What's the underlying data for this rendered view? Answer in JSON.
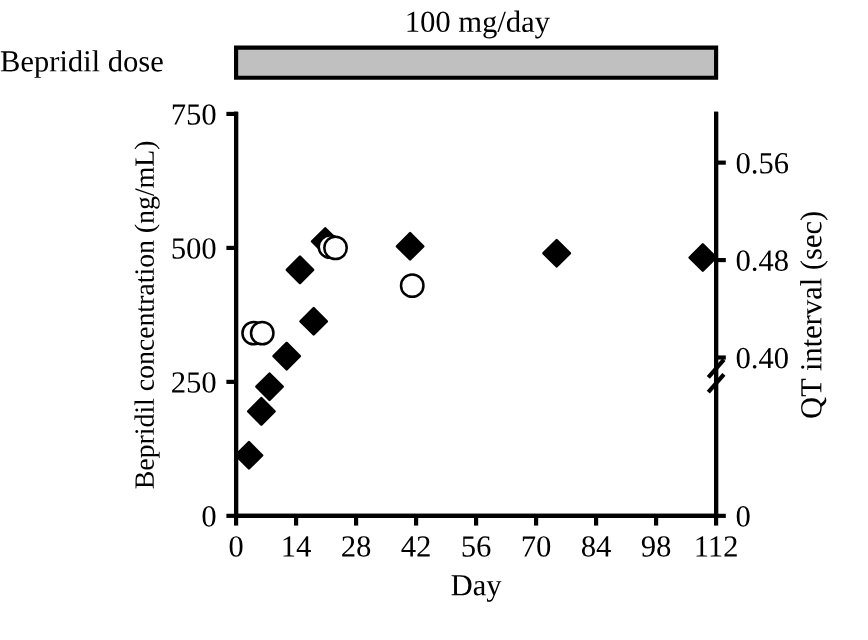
{
  "chart_data": {
    "type": "scatter",
    "xlabel": "Day",
    "ylabel": "Bepridil concentration (ng/mL)",
    "y2label": "QT interval (sec)",
    "series": [
      {
        "marker": "diamond",
        "color": "#000000",
        "x": [
          3,
          5.9,
          7.8,
          11.8,
          14.9,
          18.1,
          20.8,
          40.6,
          74.8,
          108.9
        ],
        "values": [
          113,
          195,
          241,
          298,
          459,
          363,
          512,
          503,
          490,
          482
        ]
      },
      {
        "marker": "circle",
        "color": "#ffffff",
        "axis": "y2",
        "x": [
          4.1,
          6.1,
          21.9,
          23.2,
          41.1
        ],
        "values": [
          0.42,
          0.42,
          0.491,
          0.49,
          0.459
        ]
      }
    ],
    "xlim": [
      0,
      112
    ],
    "xticks": [
      0,
      14,
      28,
      42,
      56,
      70,
      84,
      98,
      112
    ],
    "ylim": [
      0,
      750
    ],
    "yticks": [
      0,
      250,
      500,
      750
    ],
    "y2lim": [
      0.27,
      0.6
    ],
    "y2ticks": [
      {
        "value": 0.27,
        "label": "0"
      },
      {
        "value": 0.4,
        "label": "0.40"
      },
      0.48,
      0.56
    ],
    "annotations": [
      "100 mg/day",
      "Bepridil dose"
    ],
    "grid": false
  }
}
